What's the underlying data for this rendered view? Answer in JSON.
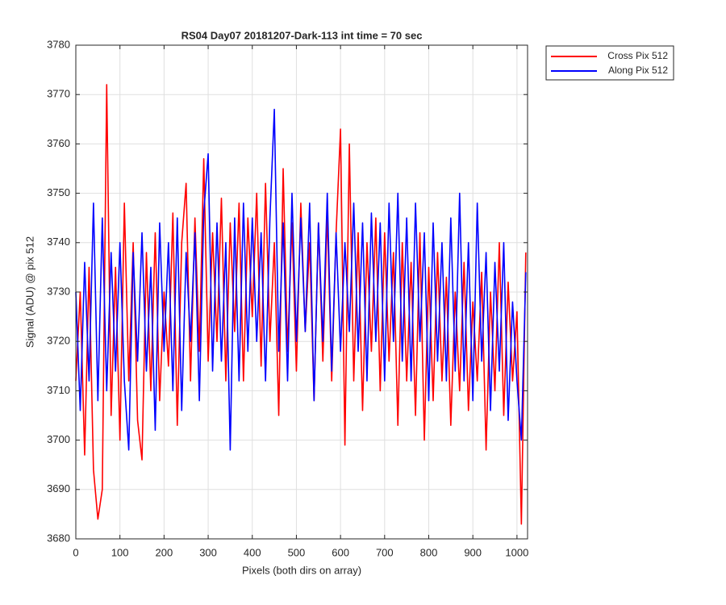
{
  "chart_data": {
    "type": "line",
    "title": "RS04 Day07 20181207-Dark-113 int time = 70 sec",
    "xlabel": "Pixels (both dirs on array)",
    "ylabel": "Signal (ADU) @ pix 512",
    "x": [
      0,
      10,
      20,
      30,
      40,
      50,
      60,
      70,
      80,
      90,
      100,
      110,
      120,
      130,
      140,
      150,
      160,
      170,
      180,
      190,
      200,
      210,
      220,
      230,
      240,
      250,
      260,
      270,
      280,
      290,
      300,
      310,
      320,
      330,
      340,
      350,
      360,
      370,
      380,
      390,
      400,
      410,
      420,
      430,
      440,
      450,
      460,
      470,
      480,
      490,
      500,
      510,
      520,
      530,
      540,
      550,
      560,
      570,
      580,
      590,
      600,
      610,
      620,
      630,
      640,
      650,
      660,
      670,
      680,
      690,
      700,
      710,
      720,
      730,
      740,
      750,
      760,
      770,
      780,
      790,
      800,
      810,
      820,
      830,
      840,
      850,
      860,
      870,
      880,
      890,
      900,
      910,
      920,
      930,
      940,
      950,
      960,
      970,
      980,
      990,
      1000,
      1010,
      1020
    ],
    "series": [
      {
        "name": "Cross Pix 512",
        "color": "#ff0000",
        "values": [
          3712,
          3730,
          3697,
          3735,
          3694,
          3684,
          3690,
          3772,
          3705,
          3735,
          3700,
          3748,
          3712,
          3740,
          3704,
          3696,
          3738,
          3710,
          3742,
          3708,
          3730,
          3715,
          3746,
          3703,
          3740,
          3752,
          3712,
          3745,
          3718,
          3757,
          3716,
          3742,
          3720,
          3749,
          3712,
          3744,
          3722,
          3748,
          3712,
          3745,
          3725,
          3750,
          3715,
          3752,
          3720,
          3740,
          3705,
          3755,
          3718,
          3744,
          3714,
          3748,
          3722,
          3740,
          3708,
          3744,
          3716,
          3746,
          3712,
          3742,
          3763,
          3699,
          3760,
          3712,
          3742,
          3706,
          3740,
          3718,
          3745,
          3710,
          3742,
          3716,
          3738,
          3703,
          3740,
          3712,
          3736,
          3705,
          3742,
          3700,
          3735,
          3708,
          3738,
          3712,
          3733,
          3703,
          3730,
          3710,
          3736,
          3706,
          3728,
          3712,
          3734,
          3698,
          3730,
          3710,
          3740,
          3705,
          3732,
          3712,
          3726,
          3683,
          3738
        ]
      },
      {
        "name": "Along Pix 512",
        "color": "#0000ff",
        "values": [
          3730,
          3706,
          3736,
          3712,
          3748,
          3708,
          3745,
          3710,
          3738,
          3714,
          3740,
          3712,
          3698,
          3738,
          3716,
          3742,
          3714,
          3735,
          3702,
          3744,
          3718,
          3740,
          3710,
          3745,
          3706,
          3738,
          3720,
          3742,
          3708,
          3746,
          3758,
          3714,
          3744,
          3716,
          3740,
          3698,
          3745,
          3712,
          3748,
          3718,
          3745,
          3720,
          3742,
          3712,
          3745,
          3767,
          3718,
          3744,
          3712,
          3750,
          3720,
          3745,
          3722,
          3748,
          3708,
          3744,
          3720,
          3750,
          3714,
          3742,
          3718,
          3740,
          3722,
          3748,
          3718,
          3744,
          3712,
          3746,
          3720,
          3744,
          3712,
          3748,
          3720,
          3750,
          3716,
          3745,
          3712,
          3748,
          3720,
          3742,
          3708,
          3744,
          3716,
          3740,
          3712,
          3745,
          3714,
          3750,
          3712,
          3740,
          3708,
          3748,
          3716,
          3738,
          3706,
          3736,
          3714,
          3740,
          3704,
          3728,
          3712,
          3700,
          3734
        ]
      }
    ],
    "xlim": [
      0,
      1024
    ],
    "xticks": [
      0,
      100,
      200,
      300,
      400,
      500,
      600,
      700,
      800,
      900,
      1000
    ],
    "ylim": [
      3680,
      3780
    ],
    "yticks": [
      3680,
      3690,
      3700,
      3710,
      3720,
      3730,
      3740,
      3750,
      3760,
      3770,
      3780
    ],
    "grid": true,
    "legend": "northeastoutside"
  }
}
